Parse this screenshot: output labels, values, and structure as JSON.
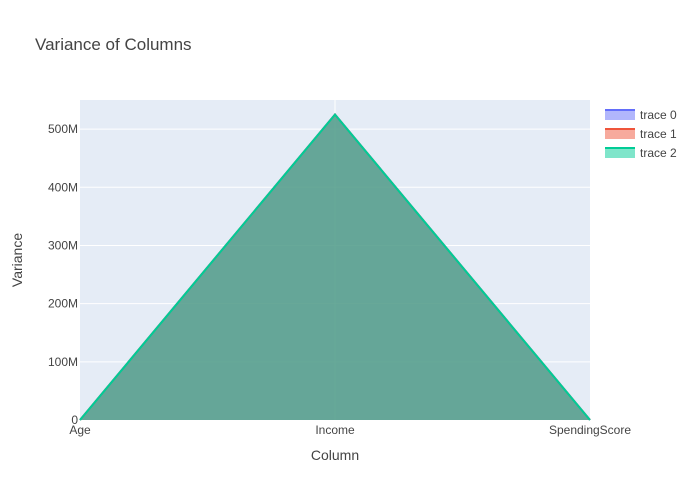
{
  "chart_data": {
    "type": "area",
    "title": "Variance of Columns",
    "xlabel": "Column",
    "ylabel": "Variance",
    "categories": [
      "Age",
      "Income",
      "SpendingScore"
    ],
    "ylim": [
      0,
      550000000
    ],
    "yticks": [
      0,
      100000000,
      200000000,
      300000000,
      400000000,
      500000000
    ],
    "ytick_labels": [
      "0",
      "100M",
      "200M",
      "300M",
      "400M",
      "500M"
    ],
    "grid": true,
    "legend_position": "top-right",
    "series": [
      {
        "name": "trace 0",
        "values": [
          195,
          525000000,
          666
        ],
        "color": "#636efa"
      },
      {
        "name": "trace 1",
        "values": [
          195,
          525000000,
          666
        ],
        "color": "#ef553b"
      },
      {
        "name": "trace 2",
        "values": [
          195,
          525000000,
          666
        ],
        "color": "#00cc96"
      }
    ]
  },
  "colors": {
    "plot_background": "#e5ecf6",
    "grid": "#ffffff"
  }
}
